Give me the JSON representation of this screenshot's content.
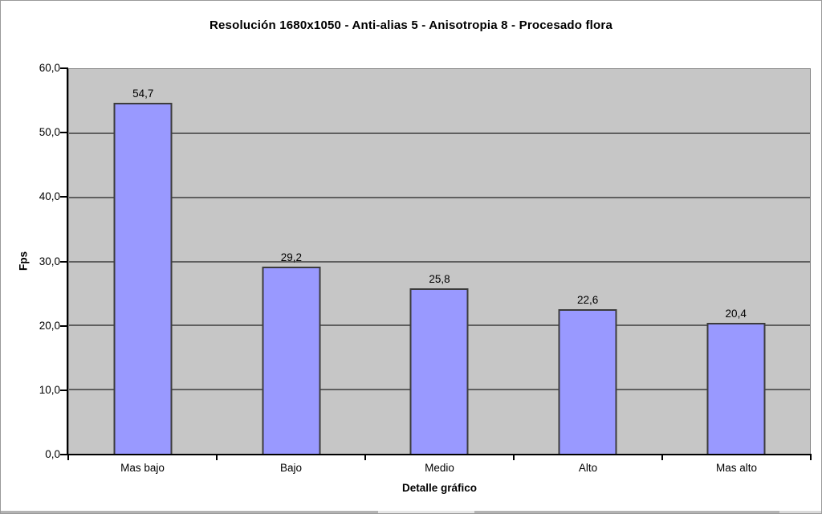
{
  "chart_data": {
    "type": "bar",
    "title": "Resolución 1680x1050 - Anti-alias 5 - Anisotropia 8 - Procesado flora",
    "xlabel": "Detalle gráfico",
    "ylabel": "Fps",
    "categories": [
      "Mas bajo",
      "Bajo",
      "Medio",
      "Alto",
      "Mas alto"
    ],
    "values": [
      54.7,
      29.2,
      25.8,
      22.6,
      20.4
    ],
    "value_labels": [
      "54,7",
      "29,2",
      "25,8",
      "22,6",
      "20,4"
    ],
    "ylim": [
      0,
      60
    ],
    "ytick_step": 10,
    "ytick_labels": [
      "0,0",
      "10,0",
      "20,0",
      "30,0",
      "40,0",
      "50,0",
      "60,0"
    ],
    "grid": true,
    "legend": "none",
    "colors": {
      "bar_fill": "#9999ff",
      "bar_border": "#3c3c3c",
      "plot_bg": "#c6c6c6",
      "gridline": "#5f5f5f",
      "axis": "#000000",
      "page_bg": "#ffffff",
      "outer_border": "#9a9a9a"
    }
  },
  "bottom_strip": {
    "segment_colors": [
      "#b3b3b3",
      "#e6e6e6",
      "#b3b3b3",
      "#dadada"
    ]
  }
}
